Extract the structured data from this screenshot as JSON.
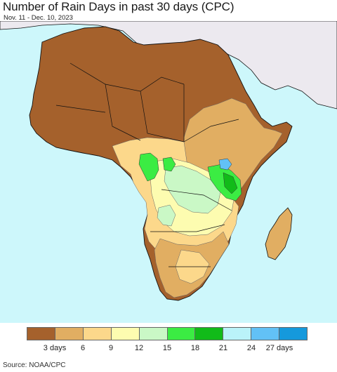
{
  "header": {
    "title": "Number of Rain Days in past 30 days (CPC)",
    "date_range": "Nov. 11 - Dec. 10, 2023"
  },
  "map": {
    "region": "Africa",
    "ocean_color": "#cdf7fb",
    "outside_land_color": "#ece9ef",
    "border_color": "#111111",
    "subborder_color": "#888888"
  },
  "legend": {
    "colors": [
      "#a5612c",
      "#e1ae62",
      "#fcd88b",
      "#fdfcb0",
      "#caf8c6",
      "#3bec43",
      "#11bb19",
      "#baf3f9",
      "#62c1f6",
      "#1599dc"
    ],
    "ticks": [
      "3 days",
      "6",
      "9",
      "12",
      "15",
      "18",
      "21",
      "24",
      "27 days"
    ]
  },
  "footer": {
    "source": "Source: NOAA/CPC"
  }
}
